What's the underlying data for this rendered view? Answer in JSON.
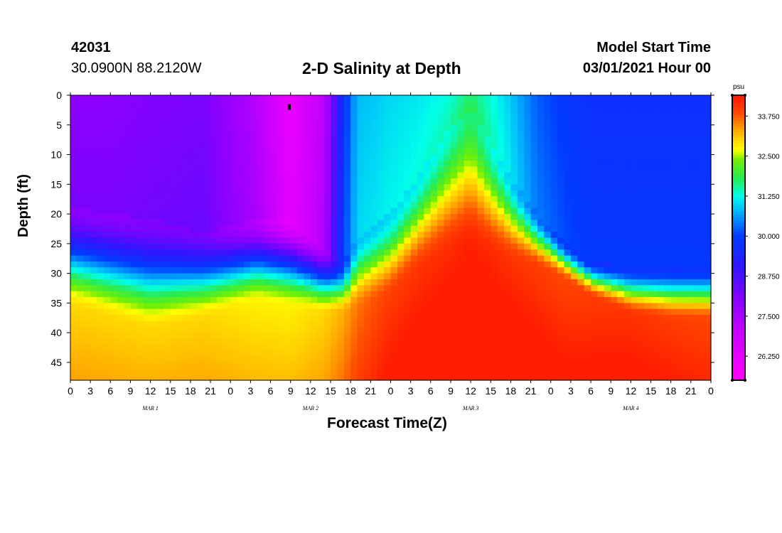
{
  "header": {
    "station_id": "42031",
    "coordinates": "30.0900N 88.2120W",
    "title": "2-D Salinity at Depth",
    "model_label": "Model Start Time",
    "model_time": "03/01/2021 Hour 00"
  },
  "chart_data": {
    "type": "heatmap",
    "title": "2-D Salinity at Depth",
    "xlabel": "Forecast Time(Z)",
    "ylabel": "Depth (ft)",
    "x_unit": "hours since model start",
    "xlim": [
      0,
      96
    ],
    "ylim": [
      0,
      48
    ],
    "y_inverted": true,
    "x_ticks": [
      0,
      3,
      6,
      9,
      12,
      15,
      18,
      21,
      24,
      27,
      30,
      33,
      36,
      39,
      42,
      45,
      48,
      51,
      54,
      57,
      60,
      63,
      66,
      69,
      72,
      75,
      78,
      81,
      84,
      87,
      90,
      93,
      96
    ],
    "x_tick_labels": [
      "0",
      "3",
      "6",
      "9",
      "12",
      "15",
      "18",
      "21",
      "0",
      "3",
      "6",
      "9",
      "12",
      "15",
      "18",
      "21",
      "0",
      "3",
      "6",
      "9",
      "12",
      "15",
      "18",
      "21",
      "0",
      "3",
      "6",
      "9",
      "12",
      "15",
      "18",
      "21",
      "0"
    ],
    "y_ticks": [
      0,
      5,
      10,
      15,
      20,
      25,
      30,
      35,
      40,
      45
    ],
    "y_tick_labels": [
      "0",
      "5",
      "10",
      "15",
      "20",
      "25",
      "30",
      "35",
      "40",
      "45"
    ],
    "date_labels": [
      {
        "label": "MAR  1",
        "x": 12
      },
      {
        "label": "MAR  2",
        "x": 36
      },
      {
        "label": "MAR  3",
        "x": 60
      },
      {
        "label": "MAR  4",
        "x": 84
      }
    ],
    "colorbar": {
      "unit": "psu",
      "min": 25.5,
      "max": 34.4,
      "ticks": [
        33.75,
        32.5,
        31.25,
        30.0,
        28.75,
        27.5,
        26.25
      ],
      "tick_labels": [
        "33.750",
        "32.500",
        "31.250",
        "30.000",
        "28.750",
        "27.500",
        "26.250"
      ]
    },
    "marker": {
      "x": 32.8,
      "y": 2
    },
    "depth_profile": [
      {
        "t": 0,
        "halocline": 19,
        "deep_start": 36,
        "surface": 28.0,
        "deep": 33.0
      },
      {
        "t": 6,
        "halocline": 20,
        "deep_start": 38,
        "surface": 28.0,
        "deep": 33.0
      },
      {
        "t": 12,
        "halocline": 21,
        "deep_start": 40,
        "surface": 28.1,
        "deep": 33.0
      },
      {
        "t": 20,
        "halocline": 23,
        "deep_start": 38,
        "surface": 28.2,
        "deep": 33.0
      },
      {
        "t": 28,
        "halocline": 21,
        "deep_start": 35,
        "surface": 27.3,
        "deep": 32.8
      },
      {
        "t": 33,
        "halocline": 20,
        "deep_start": 36,
        "surface": 26.1,
        "deep": 32.8
      },
      {
        "t": 38,
        "halocline": 25,
        "deep_start": 37,
        "surface": 27.2,
        "deep": 33.0
      },
      {
        "t": 41,
        "halocline": 28,
        "deep_start": 37,
        "surface": 29.8,
        "deep": 33.3
      },
      {
        "t": 43,
        "halocline": 24,
        "deep_start": 36,
        "surface": 30.8,
        "deep": 33.6
      },
      {
        "t": 48,
        "halocline": 20,
        "deep_start": 34,
        "surface": 31.0,
        "deep": 34.0
      },
      {
        "t": 52,
        "halocline": 14,
        "deep_start": 30,
        "surface": 31.1,
        "deep": 34.1
      },
      {
        "t": 57,
        "halocline": 5,
        "deep_start": 27,
        "surface": 31.3,
        "deep": 34.2
      },
      {
        "t": 60,
        "halocline": 2,
        "deep_start": 26,
        "surface": 31.7,
        "deep": 34.3
      },
      {
        "t": 63,
        "halocline": 8,
        "deep_start": 27,
        "surface": 31.3,
        "deep": 34.2
      },
      {
        "t": 66,
        "halocline": 14,
        "deep_start": 28,
        "surface": 30.9,
        "deep": 34.1
      },
      {
        "t": 70,
        "halocline": 20,
        "deep_start": 29,
        "surface": 30.2,
        "deep": 34.0
      },
      {
        "t": 74,
        "halocline": 25,
        "deep_start": 31,
        "surface": 29.9,
        "deep": 33.9
      },
      {
        "t": 78,
        "halocline": 28,
        "deep_start": 34,
        "surface": 29.7,
        "deep": 34.0
      },
      {
        "t": 84,
        "halocline": 29,
        "deep_start": 37,
        "surface": 29.7,
        "deep": 34.1
      },
      {
        "t": 90,
        "halocline": 29,
        "deep_start": 38,
        "surface": 29.7,
        "deep": 34.0
      },
      {
        "t": 96,
        "halocline": 29,
        "deep_start": 38,
        "surface": 29.7,
        "deep": 33.9
      }
    ]
  }
}
